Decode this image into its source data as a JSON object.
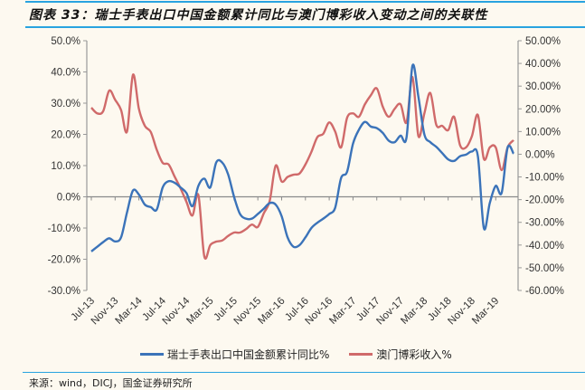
{
  "title": "图表 33：瑞士手表出口中国金额累计同比与澳门博彩收入变动之间的关联性",
  "source": "来源：wind，DICJ，国金证券研究所",
  "chart_data": {
    "type": "line",
    "title": "图表 33：瑞士手表出口中国金额累计同比与澳门博彩收入变动之间的关联性",
    "x_tick_labels": [
      "Jul-13",
      "Nov-13",
      "Mar-14",
      "Jul-14",
      "Nov-14",
      "Mar-15",
      "Jul-15",
      "Nov-15",
      "Mar-16",
      "Jul-16",
      "Nov-16",
      "Mar-17",
      "Jul-17",
      "Nov-17",
      "Mar-18",
      "Jul-18",
      "Nov-18",
      "Mar-19"
    ],
    "x_start": "Jul-13",
    "x_end": "Jun-19",
    "y_left": {
      "min": -30,
      "max": 50,
      "step": 10,
      "ticks": [
        "50.0%",
        "40.0%",
        "30.0%",
        "20.0%",
        "10.0%",
        "0.0%",
        "-10.0%",
        "-20.0%",
        "-30.0%"
      ]
    },
    "y_right": {
      "min": -60,
      "max": 50,
      "step": 10,
      "ticks": [
        "50.00%",
        "40.00%",
        "30.00%",
        "20.00%",
        "10.00%",
        "0.00%",
        "-10.00%",
        "-20.00%",
        "-30.00%",
        "-40.00%",
        "-50.00%",
        "-60.00%"
      ]
    },
    "legend_position": "bottom",
    "series": [
      {
        "name": "瑞士手表出口中国金额累计同比%",
        "axis": "left",
        "color": "#3b73b9",
        "values": [
          -17.5,
          -16,
          -14.5,
          -13.3,
          -14.3,
          -13,
          -5,
          2,
          0.7,
          -2.5,
          -3.3,
          -4.1,
          3,
          5,
          4.5,
          3,
          1.2,
          -3,
          3.5,
          5.8,
          3,
          11,
          11,
          7.2,
          0,
          -5.5,
          -7,
          -7,
          -5.5,
          -3.8,
          -2,
          -2.5,
          -6.2,
          -13,
          -16,
          -15.5,
          -13,
          -10,
          -8.3,
          -7,
          -5.5,
          -3.5,
          6,
          8,
          17,
          21.5,
          24,
          22.5,
          22,
          20.5,
          18,
          17.5,
          19.6,
          19,
          42,
          32,
          20,
          17.5,
          16,
          14,
          12,
          11.5,
          13,
          13.5,
          14.5,
          13,
          -10,
          -2,
          3.5,
          1.3,
          15.8,
          13.8
        ]
      },
      {
        "name": "澳门博彩收入%",
        "axis": "right",
        "color": "#d06a6a",
        "values": [
          20.5,
          18,
          19,
          28,
          24,
          19.5,
          10,
          35,
          20,
          12.5,
          9.8,
          2,
          -3.8,
          -4.5,
          -9.8,
          -15,
          -21,
          -27,
          -18,
          -45,
          -40,
          -38.5,
          -38,
          -36,
          -34.5,
          -34.5,
          -33,
          -31,
          -32,
          -26,
          -20.5,
          -5,
          -12,
          -10,
          -9,
          -8.5,
          -4.5,
          1,
          7.5,
          9,
          14,
          10,
          3,
          16,
          18,
          16.5,
          22,
          26,
          29,
          21,
          16.5,
          20,
          22,
          14,
          34,
          8,
          18,
          27,
          13,
          12.5,
          10.6,
          16.5,
          4,
          3,
          8,
          17.3,
          -2,
          3,
          3,
          -7,
          3,
          6.2
        ]
      }
    ]
  }
}
